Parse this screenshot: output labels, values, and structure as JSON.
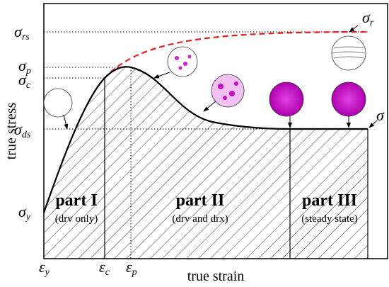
{
  "axes": {
    "y_label": "true stress",
    "x_label": "true strain"
  },
  "stress_labels": [
    {
      "symbol": "σ",
      "sub": "rs"
    },
    {
      "symbol": "σ",
      "sub": "p"
    },
    {
      "symbol": "σ",
      "sub": "c"
    },
    {
      "symbol": "σ",
      "sub": "ds"
    },
    {
      "symbol": "σ",
      "sub": "y"
    }
  ],
  "strain_labels": [
    {
      "symbol": "ε",
      "sub": "y"
    },
    {
      "symbol": "ε",
      "sub": "c"
    },
    {
      "symbol": "ε",
      "sub": "p"
    }
  ],
  "curve_labels": [
    {
      "symbol": "σ",
      "sub": "r"
    },
    {
      "symbol": "σ"
    }
  ],
  "parts": [
    {
      "title": "part I",
      "note": "(drv only)"
    },
    {
      "title": "part II",
      "note": "(drv and drx)"
    },
    {
      "title": "part III",
      "note": "(steady state)"
    }
  ]
}
